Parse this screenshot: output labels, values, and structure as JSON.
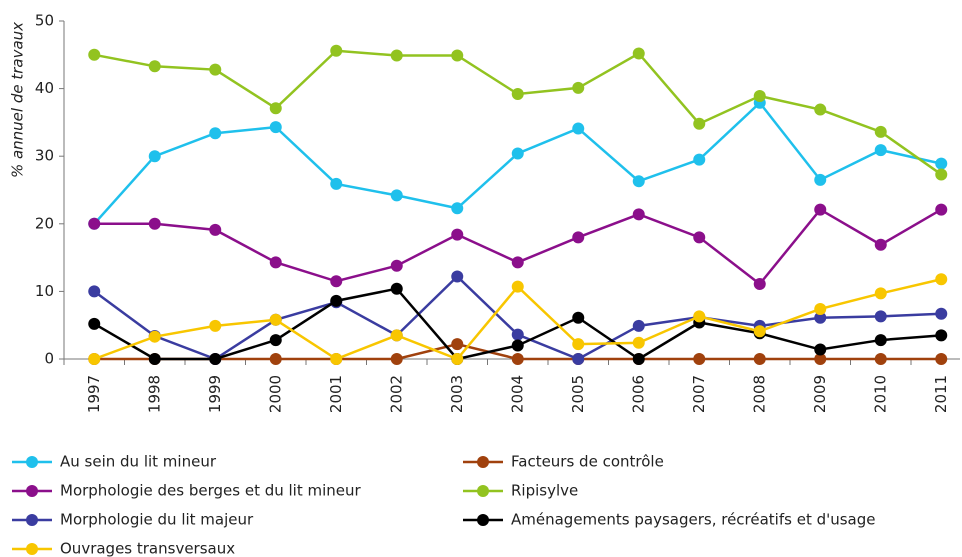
{
  "chart_data": {
    "type": "line",
    "y_label": "% annuel de travaux",
    "categories": [
      "1997",
      "1998",
      "1999",
      "2000",
      "2001",
      "2002",
      "2003",
      "2004",
      "2005",
      "2006",
      "2007",
      "2008",
      "2009",
      "2010",
      "2011"
    ],
    "ylim": [
      0,
      50
    ],
    "yticks": [
      0,
      10,
      20,
      30,
      40,
      50
    ],
    "series": [
      {
        "name": "Au sein du lit mineur",
        "color": "#1fc0ec",
        "values": [
          20,
          30,
          33.4,
          34.3,
          25.9,
          24.2,
          22.3,
          30.4,
          34.1,
          26.3,
          29.5,
          37.9,
          26.5,
          30.9,
          28.9
        ]
      },
      {
        "name": "Facteurs de contrôle",
        "color": "#a0410d",
        "values": [
          0,
          0,
          0,
          0,
          0,
          0,
          2.2,
          0,
          0,
          0,
          0,
          0,
          0,
          0,
          0
        ]
      },
      {
        "name": "Morphologie des berges et du lit mineur",
        "color": "#8b0f8b",
        "values": [
          20,
          20,
          19.1,
          14.3,
          11.5,
          13.8,
          18.4,
          14.3,
          18,
          21.4,
          18,
          11.1,
          22.1,
          16.9,
          22.1
        ]
      },
      {
        "name": "Ripisylve",
        "color": "#92c320",
        "values": [
          45,
          43.3,
          42.8,
          37.1,
          45.6,
          44.9,
          44.9,
          39.2,
          40.1,
          45.2,
          34.8,
          38.9,
          36.9,
          33.6,
          27.3
        ]
      },
      {
        "name": "Morphologie du lit majeur",
        "color": "#3a3ca0",
        "values": [
          10,
          3.4,
          0,
          5.8,
          8.4,
          3.5,
          12.2,
          3.6,
          0,
          4.9,
          6.2,
          4.9,
          6.1,
          6.3,
          6.7
        ]
      },
      {
        "name": "Aménagements paysagers, récréatifs et d'usage",
        "color": "#000000",
        "values": [
          5.2,
          0,
          0,
          2.8,
          8.6,
          10.4,
          0,
          2,
          6.1,
          0,
          5.4,
          3.8,
          1.4,
          2.8,
          3.5
        ]
      },
      {
        "name": "Ouvrages transversaux",
        "color": "#f8c600",
        "values": [
          0,
          3.3,
          4.9,
          5.8,
          0,
          3.5,
          0,
          10.7,
          2.2,
          2.4,
          6.3,
          4.1,
          7.4,
          9.7,
          11.8
        ]
      }
    ]
  }
}
